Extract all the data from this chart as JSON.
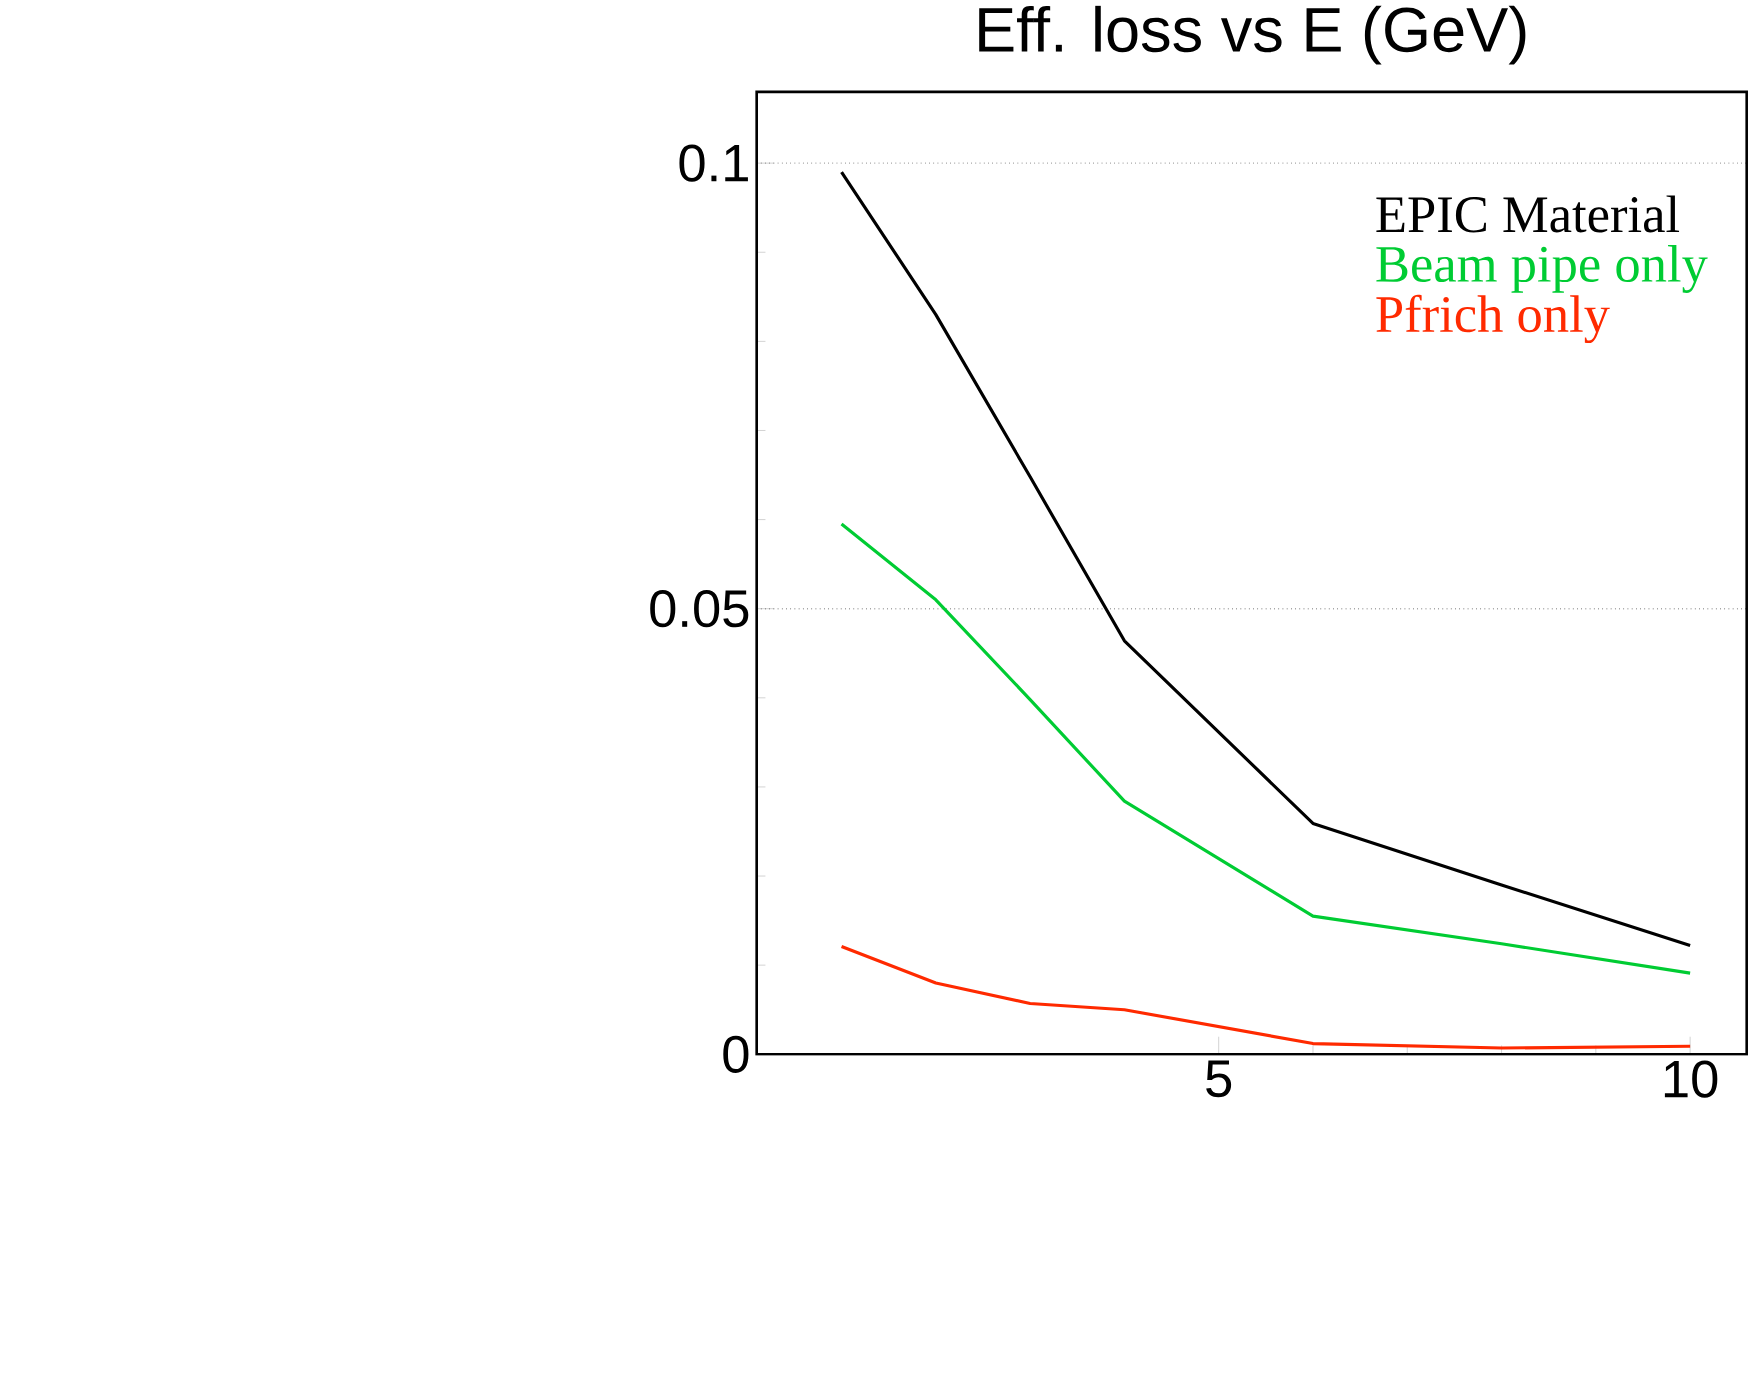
{
  "chart_data": {
    "type": "line",
    "title": "Eff. loss vs E (GeV)",
    "x": [
      1,
      2,
      3,
      4,
      6,
      8,
      10
    ],
    "series": [
      {
        "name": "EPIC Material",
        "color": "#000000",
        "values": [
          0.099,
          0.083,
          0.0648,
          0.0464,
          0.0259,
          0.019,
          0.0122
        ]
      },
      {
        "name": "Beam pipe only",
        "color": "#00cc33",
        "values": [
          0.0595,
          0.051,
          0.0398,
          0.0284,
          0.0155,
          0.0124,
          0.0091
        ]
      },
      {
        "name": "Pfrich only",
        "color": "#ff2a00",
        "values": [
          0.0121,
          0.008,
          0.0057,
          0.005,
          0.0012,
          0.0007,
          0.0009
        ]
      }
    ],
    "xlim": [
      0.1,
      10.6
    ],
    "ylim": [
      0,
      0.108
    ],
    "xticks": [
      5,
      10
    ],
    "yticks": [
      0,
      0.05,
      0.1
    ],
    "grid": "y",
    "legend": "top right",
    "line_style": "solid"
  }
}
